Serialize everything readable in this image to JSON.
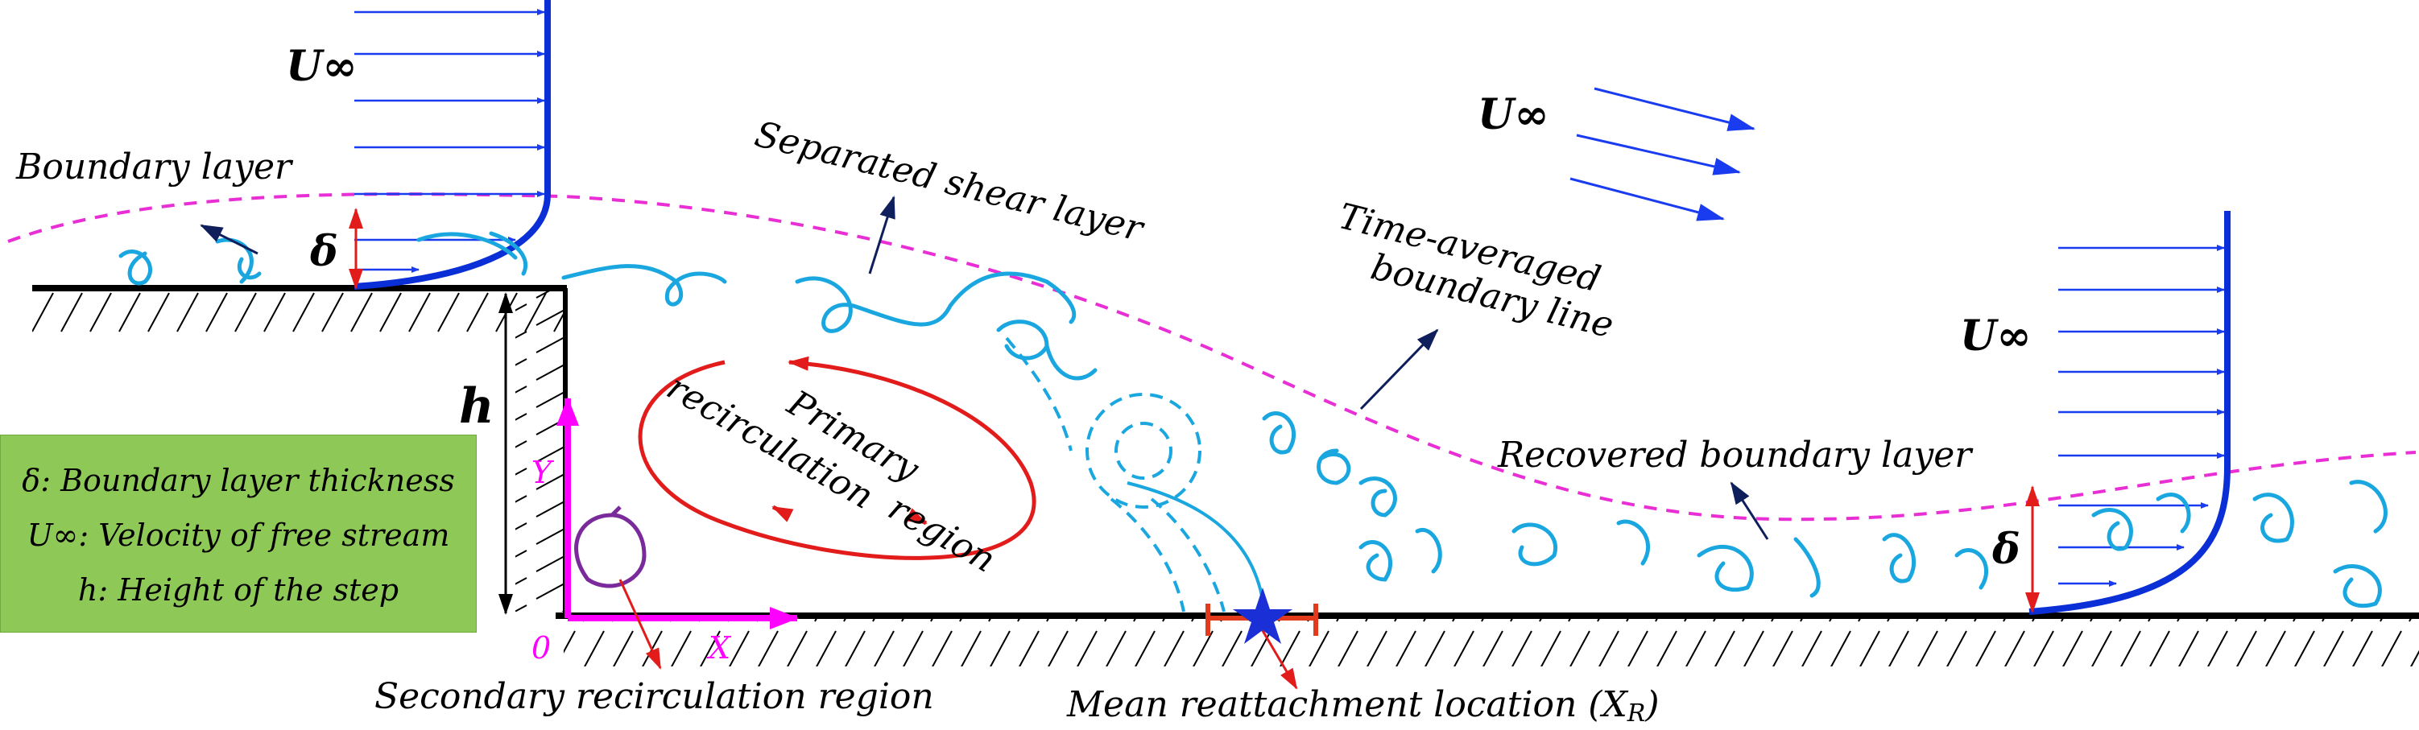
{
  "labels": {
    "u_inf": "U∞",
    "delta": "δ",
    "h": "h",
    "boundary_layer": "Boundary layer",
    "separated_shear_layer": "Separated shear layer",
    "time_averaged_line1": "Time-averaged",
    "time_averaged_line2": "boundary line",
    "primary_line1": "Primary",
    "primary_line2": "recirculation",
    "primary_line3": "region",
    "recovered_boundary_layer": "Recovered boundary layer",
    "secondary_recirculation": "Secondary recirculation region",
    "mean_reattachment": "Mean reattachment location (X",
    "mean_reattachment_sub": "R",
    "mean_reattachment_close": ")",
    "axis_y": "Y",
    "axis_x": "X",
    "origin": "0"
  },
  "legend": {
    "line1_symbol": "δ",
    "line1_text": ": Boundary layer thickness",
    "line2_symbol": "U∞",
    "line2_text": ": Velocity of free stream",
    "line3_symbol": "h",
    "line3_text": ": Height of the step"
  },
  "colors": {
    "profile": "#0a2fd6",
    "arrows": "#1a3cf0",
    "shear_dash": "#e82ed4",
    "vortex": "#1aa7e0",
    "primary": "#e21b1b",
    "secondary": "#7a2a9a",
    "axis": "#ff00ff",
    "pointer": "#0f1f5c",
    "reattach": "#e23a1a",
    "star": "#1a2fd6",
    "legend_bg": "#8ec958"
  }
}
